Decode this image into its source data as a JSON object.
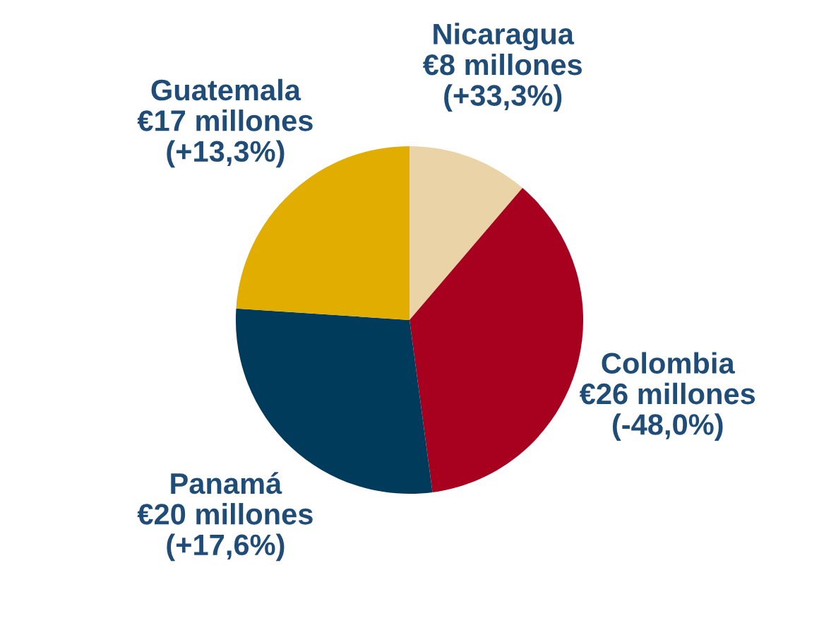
{
  "chart_data": {
    "type": "pie",
    "categories": [
      "Nicaragua",
      "Colombia",
      "Panamá",
      "Guatemala"
    ],
    "values": [
      8,
      26,
      20,
      17
    ],
    "colors": [
      "#ead3a6",
      "#a8001f",
      "#003b5c",
      "#e1ad00"
    ],
    "value_labels": [
      "€8 millones\n(+33,3%)",
      "€26 millones\n(-48,0%)",
      "€20 millones\n(+17,6%)",
      "€17 millones\n(+13,3%)"
    ]
  }
}
